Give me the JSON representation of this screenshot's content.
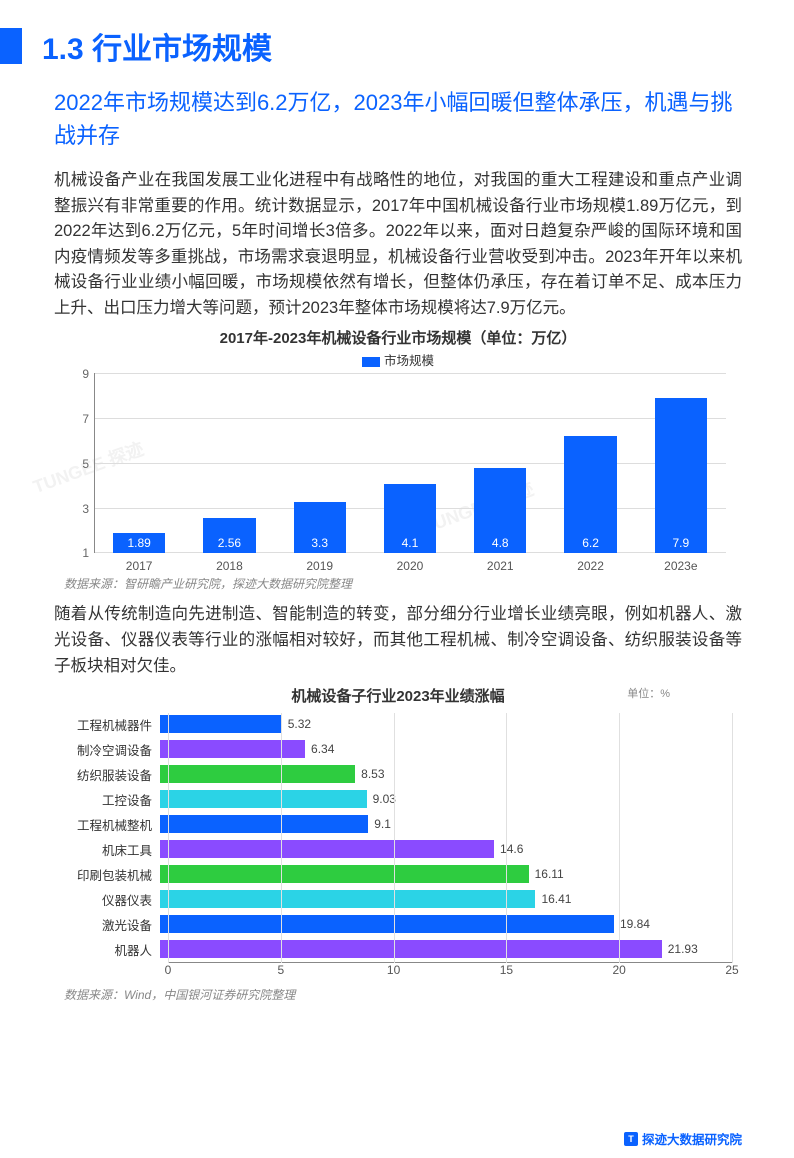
{
  "header": {
    "section_no": "1.3",
    "section_title": "行业市场规模"
  },
  "subtitle": "2022年市场规模达到6.2万亿，2023年小幅回暖但整体承压，机遇与挑战并存",
  "para1": "机械设备产业在我国发展工业化进程中有战略性的地位，对我国的重大工程建设和重点产业调整振兴有非常重要的作用。统计数据显示，2017年中国机械设备行业市场规模1.89万亿元，到2022年达到6.2万亿元，5年时间增长3倍多。2022年以来，面对日趋复杂严峻的国际环境和国内疫情频发等多重挑战，市场需求衰退明显，机械设备行业营收受到冲击。2023年开年以来机械设备行业业绩小幅回暖，市场规模依然有增长，但整体仍承压，存在着订单不足、成本压力上升、出口压力增大等问题，预计2023年整体市场规模将达7.9万亿元。",
  "chart1": {
    "type": "bar",
    "title": "2017年-2023年机械设备行业市场规模（单位：万亿）",
    "legend": "市场规模",
    "categories": [
      "2017",
      "2018",
      "2019",
      "2020",
      "2021",
      "2022",
      "2023e"
    ],
    "values": [
      1.89,
      2.56,
      3.3,
      4.1,
      4.8,
      6.2,
      7.9
    ],
    "bar_color": "#0a62ff",
    "value_color": "#ffffff",
    "ymin": 1,
    "ymax": 9,
    "ytick_step": 2,
    "grid_color": "#dddddd",
    "axis_color": "#888888",
    "source": "数据来源：智研瞻产业研究院，探迹大数据研究院整理"
  },
  "para2": "随着从传统制造向先进制造、智能制造的转变，部分细分行业增长业绩亮眼，例如机器人、激光设备、仪器仪表等行业的涨幅相对较好，而其他工程机械、制冷空调设备、纺织服装设备等子板块相对欠佳。",
  "chart2": {
    "type": "hbar",
    "title": "机械设备子行业2023年业绩涨幅",
    "unit": "单位：%",
    "categories": [
      "工程机械器件",
      "制冷空调设备",
      "纺织服装设备",
      "工控设备",
      "工程机械整机",
      "机床工具",
      "印刷包装机械",
      "仪器仪表",
      "激光设备",
      "机器人"
    ],
    "values": [
      5.32,
      6.34,
      8.53,
      9.03,
      9.1,
      14.6,
      16.11,
      16.41,
      19.84,
      21.93
    ],
    "bar_colors": [
      "#0a62ff",
      "#8a4bff",
      "#2ecc40",
      "#2bd3e6",
      "#0a62ff",
      "#8a4bff",
      "#2ecc40",
      "#2bd3e6",
      "#0a62ff",
      "#8a4bff"
    ],
    "xmin": 0,
    "xmax": 25,
    "xtick_step": 5,
    "grid_color": "#e0e0e0",
    "source": "数据来源：Wind，中国银河证券研究院整理"
  },
  "footer": {
    "brand": "探迹大数据研究院",
    "icon_text": "T"
  },
  "watermark": "TUNGEE 探迹"
}
